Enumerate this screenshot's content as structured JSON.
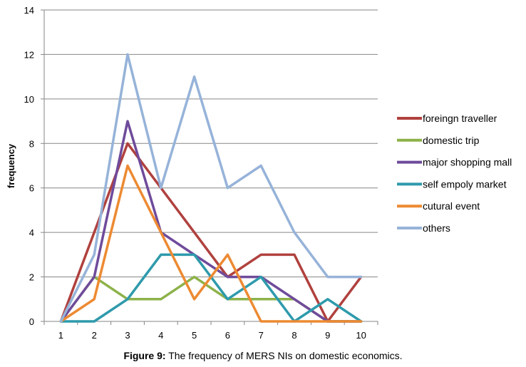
{
  "caption": {
    "label": "Figure 9:",
    "text": " The frequency of MERS NIs on domestic economics."
  },
  "chart_data": {
    "type": "line",
    "title": "",
    "xlabel": "",
    "ylabel": "frequency",
    "x": [
      1,
      2,
      3,
      4,
      5,
      6,
      7,
      8,
      9,
      10
    ],
    "ylim": [
      0,
      14
    ],
    "yticks": [
      0,
      2,
      4,
      6,
      8,
      10,
      12,
      14
    ],
    "grid": "horizontal",
    "legend": "right",
    "series": [
      {
        "name": "foreingn traveller",
        "color": "#b0413e",
        "values": [
          0,
          4,
          8,
          6,
          4,
          2,
          3,
          3,
          0,
          2
        ]
      },
      {
        "name": "domestic trip",
        "color": "#8db249",
        "values": [
          0,
          2,
          1,
          1,
          2,
          1,
          1,
          1,
          0,
          0
        ]
      },
      {
        "name": "major shopping mall",
        "color": "#6f4b9b",
        "values": [
          0,
          2,
          9,
          4,
          3,
          2,
          2,
          1,
          0,
          0
        ]
      },
      {
        "name": "self empoly market",
        "color": "#2e9aac",
        "values": [
          0,
          0,
          1,
          3,
          3,
          1,
          2,
          0,
          1,
          0
        ]
      },
      {
        "name": "cutural event",
        "color": "#ed8a32",
        "values": [
          0,
          1,
          7,
          4,
          1,
          3,
          0,
          0,
          0,
          0
        ]
      },
      {
        "name": "others",
        "color": "#96b3d9",
        "values": [
          0,
          3,
          12,
          6,
          11,
          6,
          7,
          4,
          2,
          2
        ]
      }
    ]
  }
}
